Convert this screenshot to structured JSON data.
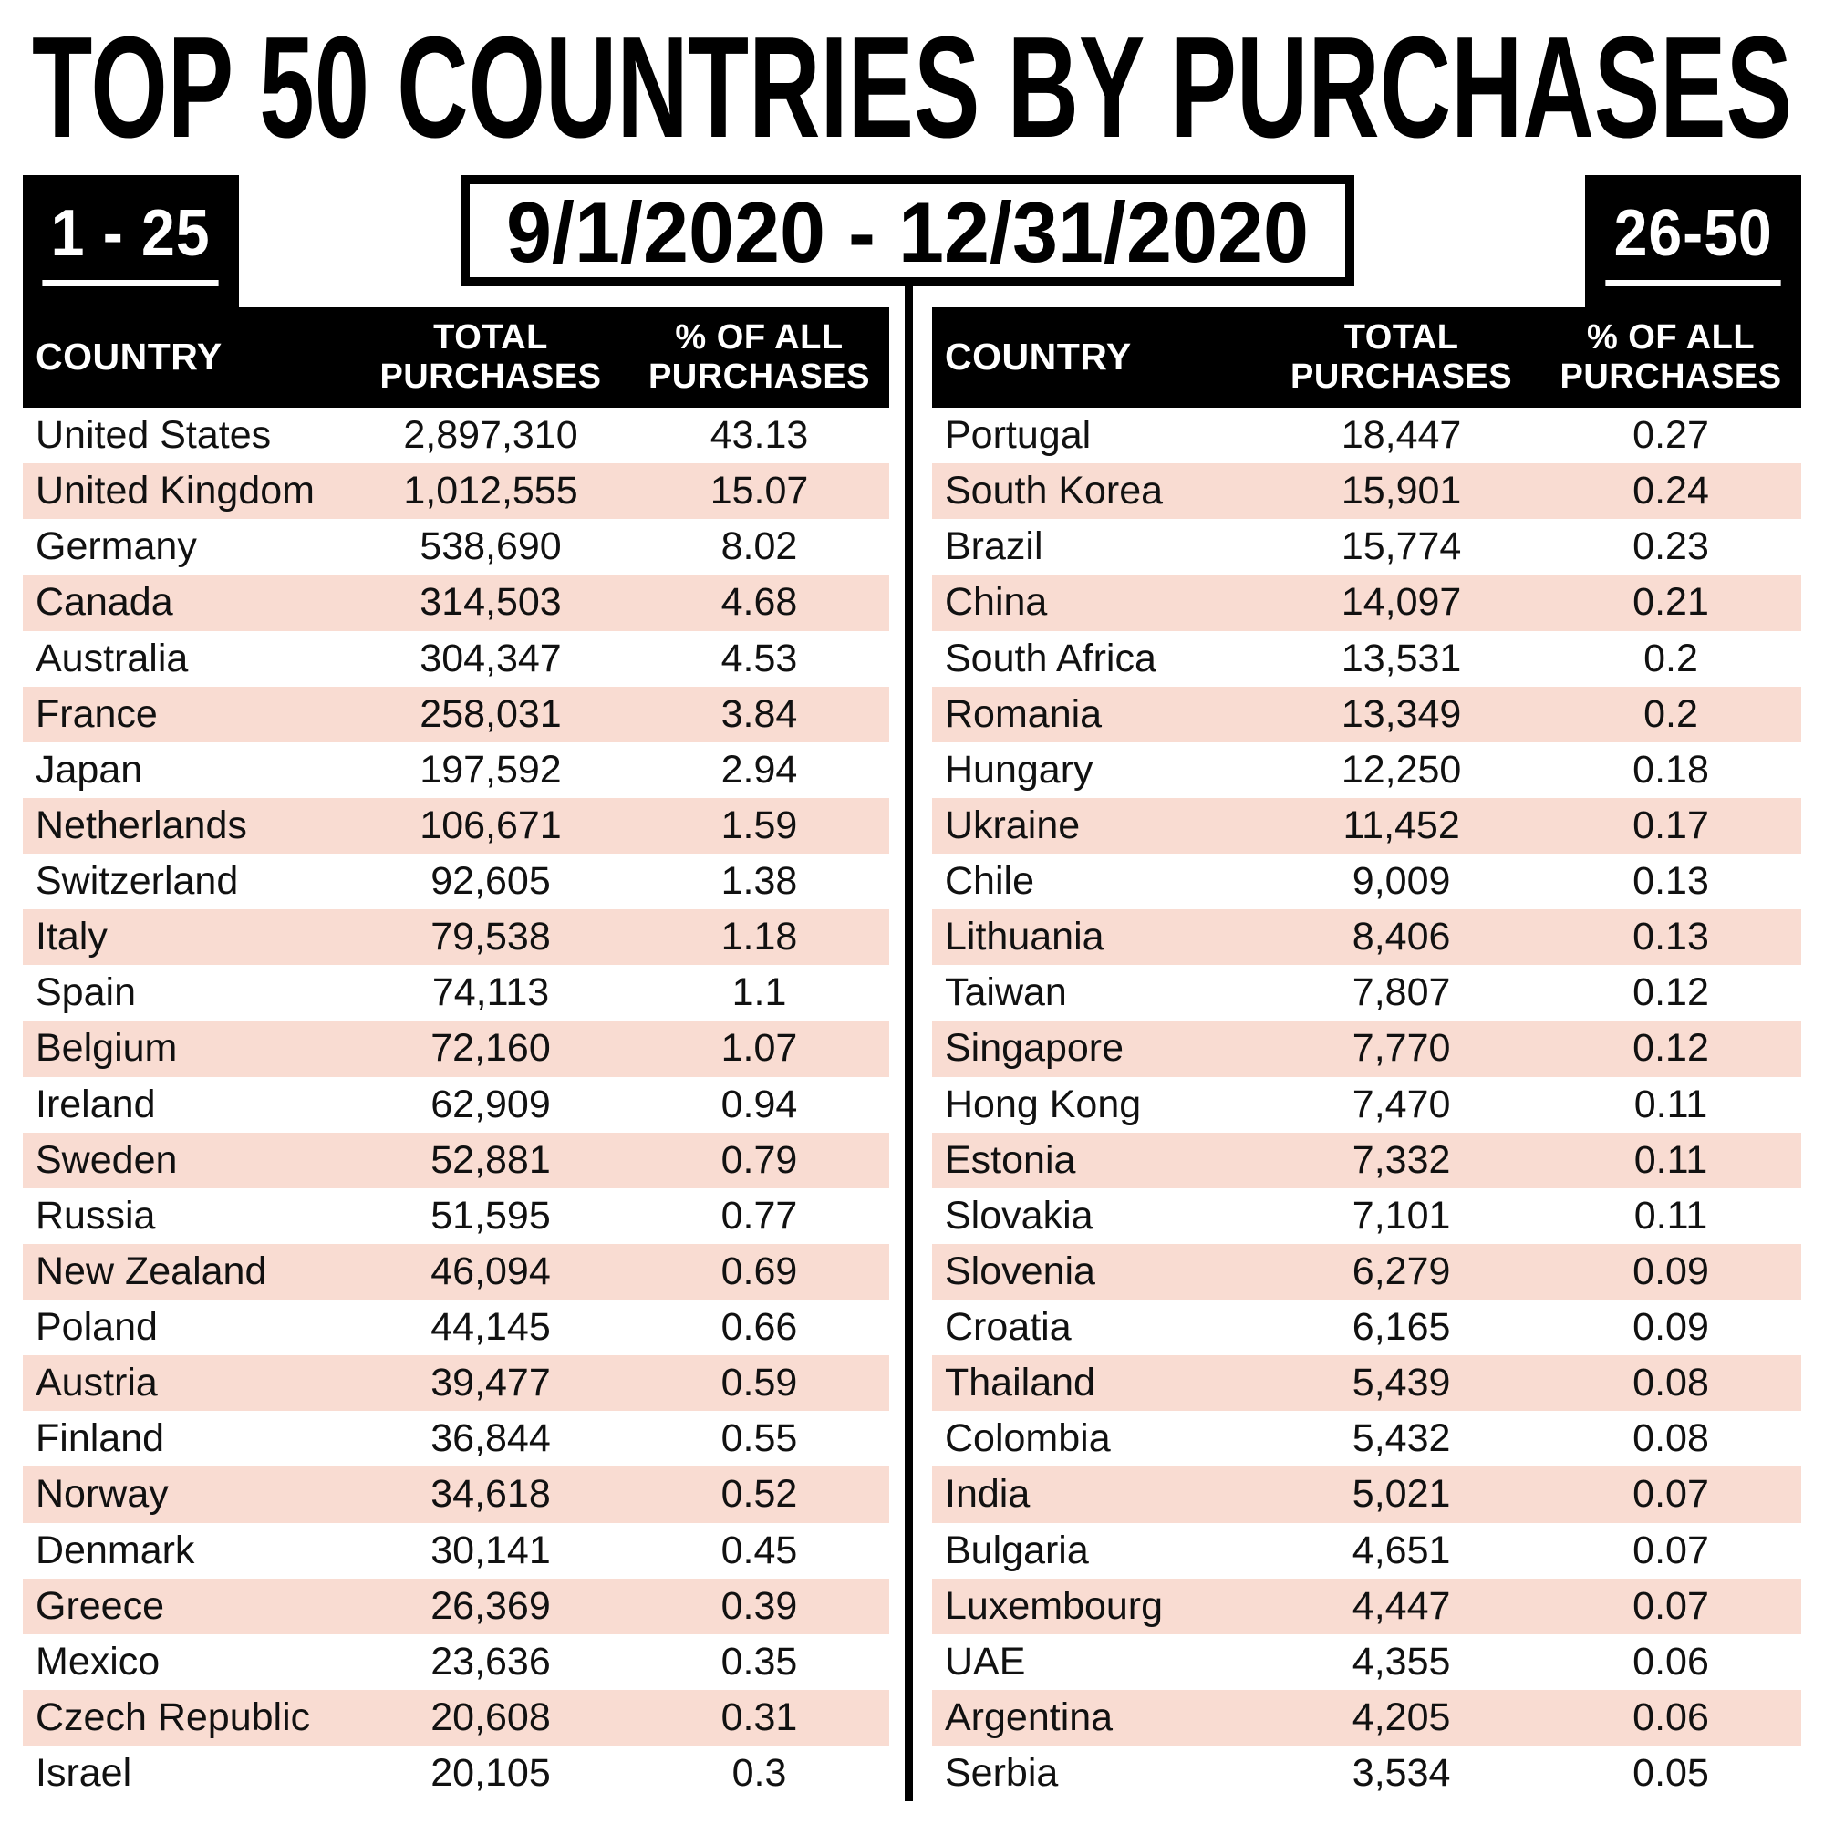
{
  "title": "TOP 50 COUNTRIES BY PURCHASES",
  "date_range": "9/1/2020 - 12/31/2020",
  "badges": {
    "left": "1 - 25",
    "right": "26-50"
  },
  "header": {
    "country": "COUNTRY",
    "total": "TOTAL\nPURCHASES",
    "pct": "% OF ALL\nPURCHASES"
  },
  "colors": {
    "black": "#000000",
    "row_highlight_pink": "#f9dcd2",
    "text": "#111111",
    "white": "#ffffff"
  },
  "chart_data": {
    "type": "table",
    "title": "TOP 50 COUNTRIES BY PURCHASES",
    "date_range": "9/1/2020 - 12/31/2020",
    "columns": [
      "COUNTRY",
      "TOTAL PURCHASES",
      "% OF ALL PURCHASES"
    ],
    "tables": [
      {
        "rank_range": "1 - 25",
        "rows": [
          [
            "United States",
            "2,897,310",
            "43.13"
          ],
          [
            "United Kingdom",
            "1,012,555",
            "15.07"
          ],
          [
            "Germany",
            "538,690",
            "8.02"
          ],
          [
            "Canada",
            "314,503",
            "4.68"
          ],
          [
            "Australia",
            "304,347",
            "4.53"
          ],
          [
            "France",
            "258,031",
            "3.84"
          ],
          [
            "Japan",
            "197,592",
            "2.94"
          ],
          [
            "Netherlands",
            "106,671",
            "1.59"
          ],
          [
            "Switzerland",
            "92,605",
            "1.38"
          ],
          [
            "Italy",
            "79,538",
            "1.18"
          ],
          [
            "Spain",
            "74,113",
            "1.1"
          ],
          [
            "Belgium",
            "72,160",
            "1.07"
          ],
          [
            "Ireland",
            "62,909",
            "0.94"
          ],
          [
            "Sweden",
            "52,881",
            "0.79"
          ],
          [
            "Russia",
            "51,595",
            "0.77"
          ],
          [
            "New Zealand",
            "46,094",
            "0.69"
          ],
          [
            "Poland",
            "44,145",
            "0.66"
          ],
          [
            "Austria",
            "39,477",
            "0.59"
          ],
          [
            "Finland",
            "36,844",
            "0.55"
          ],
          [
            "Norway",
            "34,618",
            "0.52"
          ],
          [
            "Denmark",
            "30,141",
            "0.45"
          ],
          [
            "Greece",
            "26,369",
            "0.39"
          ],
          [
            "Mexico",
            "23,636",
            "0.35"
          ],
          [
            "Czech Republic",
            "20,608",
            "0.31"
          ],
          [
            "Israel",
            "20,105",
            "0.3"
          ]
        ]
      },
      {
        "rank_range": "26-50",
        "rows": [
          [
            "Portugal",
            "18,447",
            "0.27"
          ],
          [
            "South Korea",
            "15,901",
            "0.24"
          ],
          [
            "Brazil",
            "15,774",
            "0.23"
          ],
          [
            "China",
            "14,097",
            "0.21"
          ],
          [
            "South Africa",
            "13,531",
            "0.2"
          ],
          [
            "Romania",
            "13,349",
            "0.2"
          ],
          [
            "Hungary",
            "12,250",
            "0.18"
          ],
          [
            "Ukraine",
            "11,452",
            "0.17"
          ],
          [
            "Chile",
            "9,009",
            "0.13"
          ],
          [
            "Lithuania",
            "8,406",
            "0.13"
          ],
          [
            "Taiwan",
            "7,807",
            "0.12"
          ],
          [
            "Singapore",
            "7,770",
            "0.12"
          ],
          [
            "Hong Kong",
            "7,470",
            "0.11"
          ],
          [
            "Estonia",
            "7,332",
            "0.11"
          ],
          [
            "Slovakia",
            "7,101",
            "0.11"
          ],
          [
            "Slovenia",
            "6,279",
            "0.09"
          ],
          [
            "Croatia",
            "6,165",
            "0.09"
          ],
          [
            "Thailand",
            "5,439",
            "0.08"
          ],
          [
            "Colombia",
            "5,432",
            "0.08"
          ],
          [
            "India",
            "5,021",
            "0.07"
          ],
          [
            "Bulgaria",
            "4,651",
            "0.07"
          ],
          [
            "Luxembourg",
            "4,447",
            "0.07"
          ],
          [
            "UAE",
            "4,355",
            "0.06"
          ],
          [
            "Argentina",
            "4,205",
            "0.06"
          ],
          [
            "Serbia",
            "3,534",
            "0.05"
          ]
        ]
      }
    ]
  }
}
